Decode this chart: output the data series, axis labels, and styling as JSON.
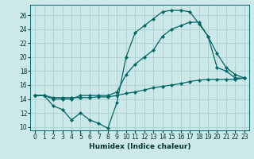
{
  "xlabel": "Humidex (Indice chaleur)",
  "background_color": "#cce8e8",
  "grid_color": "#aacfcf",
  "line_color": "#006666",
  "xlim": [
    -0.5,
    23.5
  ],
  "ylim": [
    9.5,
    27.5
  ],
  "xticks": [
    0,
    1,
    2,
    3,
    4,
    5,
    6,
    7,
    8,
    9,
    10,
    11,
    12,
    13,
    14,
    15,
    16,
    17,
    18,
    19,
    20,
    21,
    22,
    23
  ],
  "yticks": [
    10,
    12,
    14,
    16,
    18,
    20,
    22,
    24,
    26
  ],
  "line1_x": [
    0,
    1,
    2,
    3,
    4,
    5,
    6,
    7,
    8,
    9,
    10,
    11,
    12,
    13,
    14,
    15,
    16,
    17,
    18,
    19,
    20,
    21,
    22,
    23
  ],
  "line1_y": [
    14.5,
    14.5,
    13.0,
    12.5,
    11.0,
    12.0,
    11.0,
    10.5,
    9.8,
    13.5,
    20.0,
    23.5,
    24.5,
    25.5,
    26.5,
    26.7,
    26.7,
    26.5,
    24.8,
    23.0,
    18.5,
    18.0,
    17.0,
    17.0
  ],
  "line2_x": [
    0,
    1,
    2,
    3,
    4,
    5,
    6,
    7,
    8,
    9,
    10,
    11,
    12,
    13,
    14,
    15,
    16,
    17,
    18,
    19,
    20,
    21,
    22,
    23
  ],
  "line2_y": [
    14.5,
    14.5,
    14.0,
    14.0,
    14.0,
    14.5,
    14.5,
    14.5,
    14.5,
    15.0,
    17.5,
    19.0,
    20.0,
    21.0,
    23.0,
    24.0,
    24.5,
    25.0,
    25.0,
    23.0,
    20.5,
    18.5,
    17.5,
    17.0
  ],
  "line3_x": [
    0,
    1,
    2,
    3,
    4,
    5,
    6,
    7,
    8,
    9,
    10,
    11,
    12,
    13,
    14,
    15,
    16,
    17,
    18,
    19,
    20,
    21,
    22,
    23
  ],
  "line3_y": [
    14.5,
    14.5,
    14.2,
    14.2,
    14.2,
    14.2,
    14.2,
    14.3,
    14.3,
    14.5,
    14.8,
    15.0,
    15.3,
    15.6,
    15.8,
    16.0,
    16.2,
    16.5,
    16.7,
    16.8,
    16.8,
    16.8,
    16.8,
    17.0
  ]
}
